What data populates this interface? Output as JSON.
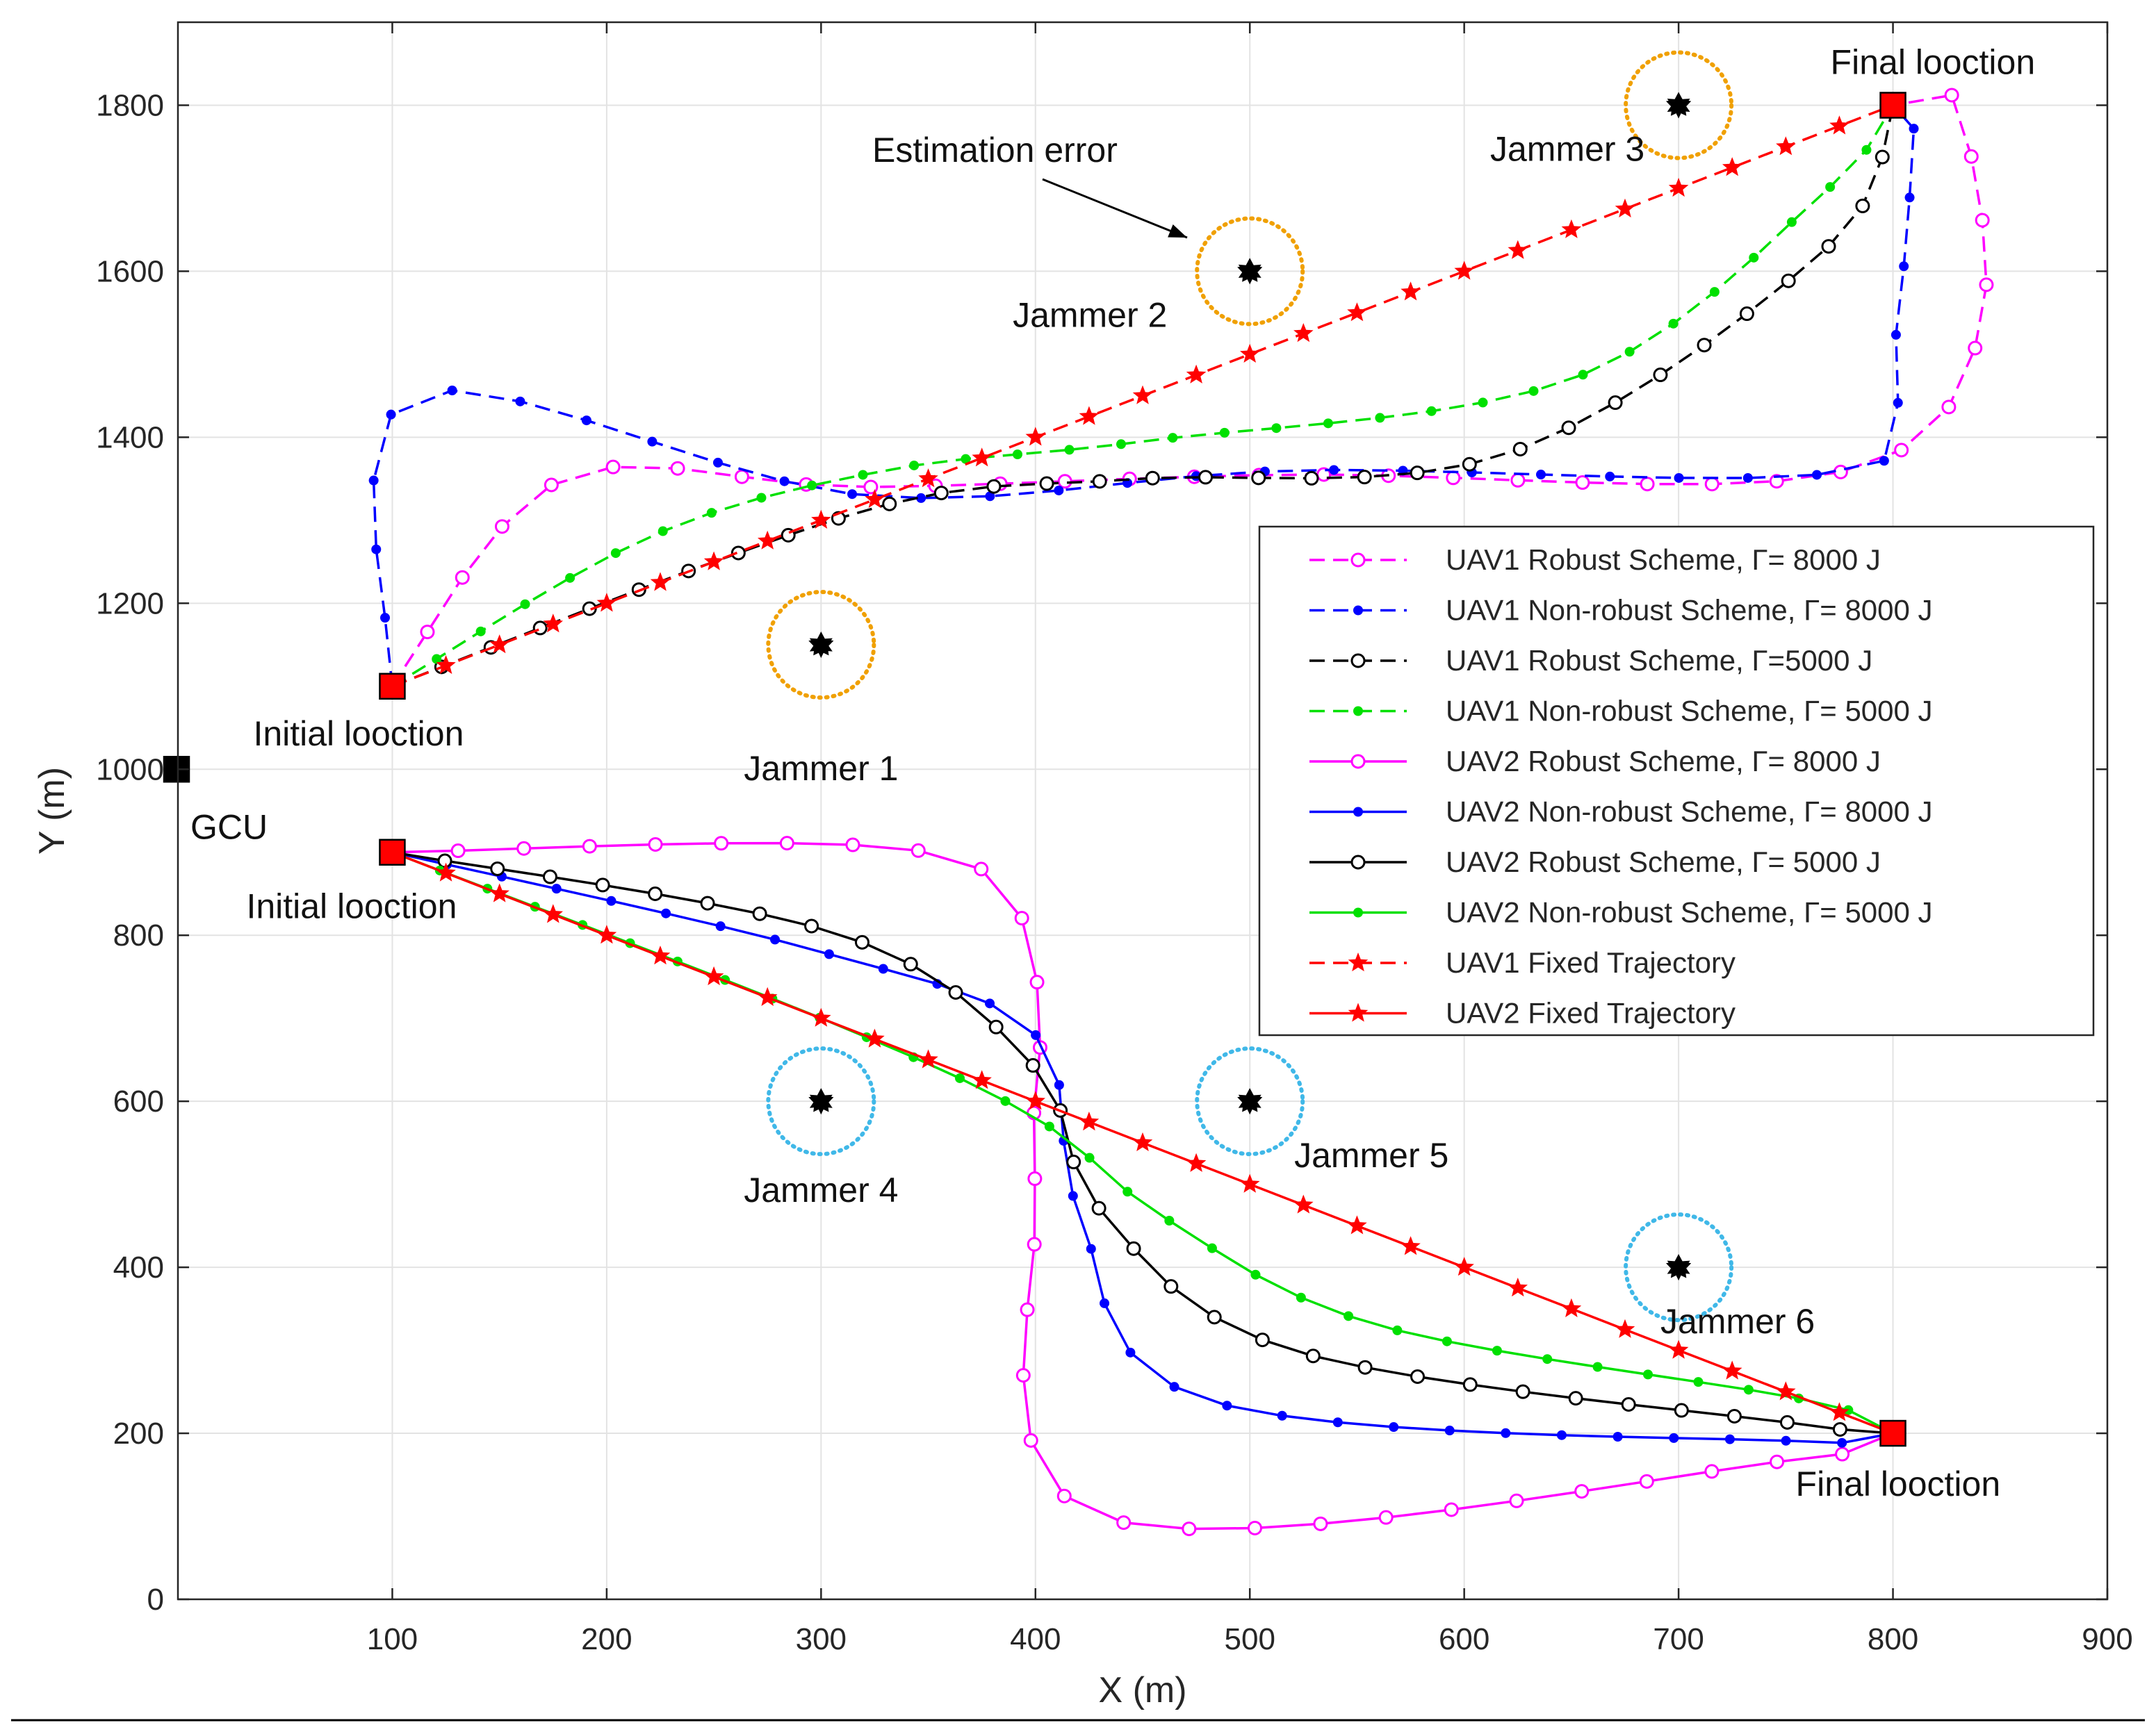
{
  "chart_data": {
    "type": "line",
    "title": "",
    "xlabel": "X (m)",
    "ylabel": "Y (m)",
    "xlim": [
      0,
      900
    ],
    "ylim": [
      0,
      1900
    ],
    "xticks": [
      100,
      200,
      300,
      400,
      500,
      600,
      700,
      800,
      900
    ],
    "yticks": [
      0,
      200,
      400,
      600,
      800,
      1000,
      1200,
      1400,
      1600,
      1800
    ],
    "grid": true,
    "legend_position": "right",
    "series": [
      {
        "name": "UAV1  Robust Scheme, Γ= 8000 J",
        "color": "#ff00ff",
        "linestyle": "dashed",
        "marker": "open-circle",
        "control_points": [
          [
            100,
            1100
          ],
          [
            180,
            1350
          ],
          [
            320,
            1340
          ],
          [
            520,
            1355
          ],
          [
            770,
            1355
          ],
          [
            840,
            1520
          ],
          [
            830,
            1800
          ],
          [
            800,
            1800
          ]
        ]
      },
      {
        "name": "UAV1  Non-robust Scheme, Γ= 8000 J",
        "color": "#0000ff",
        "linestyle": "dashed",
        "marker": "dot",
        "control_points": [
          [
            100,
            1100
          ],
          [
            110,
            1450
          ],
          [
            320,
            1330
          ],
          [
            520,
            1360
          ],
          [
            780,
            1360
          ],
          [
            800,
            1500
          ],
          [
            810,
            1800
          ],
          [
            800,
            1800
          ]
        ]
      },
      {
        "name": "UAV1  Robust Scheme, Γ=5000 J",
        "color": "#000000",
        "linestyle": "dashed",
        "marker": "open-circle",
        "control_points": [
          [
            100,
            1100
          ],
          [
            250,
            1250
          ],
          [
            350,
            1330
          ],
          [
            450,
            1350
          ],
          [
            620,
            1380
          ],
          [
            770,
            1630
          ],
          [
            800,
            1800
          ]
        ]
      },
      {
        "name": "UAV1  Non-robust Scheme, Γ= 5000 J",
        "color": "#00e000",
        "linestyle": "dashed",
        "marker": "dot",
        "control_points": [
          [
            100,
            1100
          ],
          [
            220,
            1280
          ],
          [
            330,
            1360
          ],
          [
            450,
            1395
          ],
          [
            650,
            1470
          ],
          [
            770,
            1700
          ],
          [
            800,
            1800
          ]
        ]
      },
      {
        "name": "UAV2  Robust Scheme, Γ= 8000 J",
        "color": "#ff00ff",
        "linestyle": "solid",
        "marker": "open-circle",
        "control_points": [
          [
            100,
            900
          ],
          [
            350,
            900
          ],
          [
            400,
            750
          ],
          [
            400,
            500
          ],
          [
            430,
            100
          ],
          [
            760,
            170
          ],
          [
            800,
            200
          ]
        ]
      },
      {
        "name": "UAV2  Non-robust Scheme, Γ= 8000 J",
        "color": "#0000ff",
        "linestyle": "solid",
        "marker": "dot",
        "control_points": [
          [
            100,
            900
          ],
          [
            300,
            780
          ],
          [
            400,
            680
          ],
          [
            420,
            470
          ],
          [
            480,
            240
          ],
          [
            760,
            190
          ],
          [
            800,
            200
          ]
        ]
      },
      {
        "name": "UAV2  Robust Scheme, Γ= 5000 J",
        "color": "#000000",
        "linestyle": "solid",
        "marker": "open-circle",
        "control_points": [
          [
            100,
            900
          ],
          [
            310,
            800
          ],
          [
            400,
            640
          ],
          [
            430,
            470
          ],
          [
            520,
            300
          ],
          [
            760,
            210
          ],
          [
            800,
            200
          ]
        ]
      },
      {
        "name": "UAV2  Non-robust Scheme, Γ= 5000 J",
        "color": "#00e000",
        "linestyle": "solid",
        "marker": "dot",
        "control_points": [
          [
            100,
            900
          ],
          [
            300,
            700
          ],
          [
            400,
            580
          ],
          [
            460,
            460
          ],
          [
            560,
            330
          ],
          [
            760,
            240
          ],
          [
            800,
            200
          ]
        ]
      },
      {
        "name": "UAV1  Fixed Trajectory",
        "color": "#ff0000",
        "linestyle": "dashed",
        "marker": "star",
        "control_points": [
          [
            100,
            1100
          ],
          [
            800,
            1800
          ]
        ]
      },
      {
        "name": "UAV2  Fixed Trajectory",
        "color": "#ff0000",
        "linestyle": "solid",
        "marker": "star",
        "control_points": [
          [
            100,
            900
          ],
          [
            800,
            200
          ]
        ]
      }
    ],
    "jammers": [
      {
        "label": "Jammer 1",
        "x": 300,
        "y": 1150,
        "circle_color": "#f0a000"
      },
      {
        "label": "Jammer 2",
        "x": 500,
        "y": 1600,
        "circle_color": "#f0a000"
      },
      {
        "label": "Jammer 3",
        "x": 700,
        "y": 1800,
        "circle_color": "#f0a000"
      },
      {
        "label": "Jammer 4",
        "x": 300,
        "y": 600,
        "circle_color": "#40b8e8"
      },
      {
        "label": "Jammer 5",
        "x": 500,
        "y": 600,
        "circle_color": "#40b8e8"
      },
      {
        "label": "Jammer 6",
        "x": 700,
        "y": 400,
        "circle_color": "#40b8e8"
      }
    ],
    "locations": [
      {
        "label": "Initial looction",
        "x": 100,
        "y": 1100,
        "color": "#ff0000"
      },
      {
        "label": "Final looction",
        "x": 800,
        "y": 1800,
        "color": "#ff0000"
      },
      {
        "label": "Initial looction",
        "x": 100,
        "y": 900,
        "color": "#ff0000"
      },
      {
        "label": "Final looction",
        "x": 800,
        "y": 200,
        "color": "#ff0000"
      },
      {
        "label": "GCU",
        "x": 0,
        "y": 1000,
        "color": "#000000"
      }
    ],
    "annotations": [
      {
        "text": "Estimation error",
        "points_to": "Jammer 2"
      }
    ]
  }
}
